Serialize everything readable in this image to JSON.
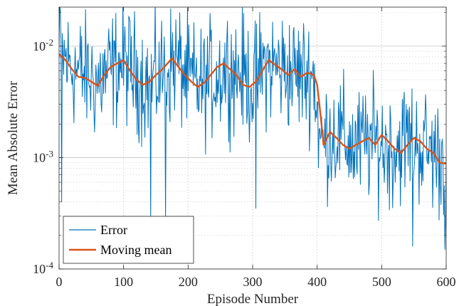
{
  "chart_data": {
    "type": "line",
    "title": "",
    "xlabel": "Episode Number",
    "ylabel": "Mean Absolute Error",
    "xlim": [
      0,
      600
    ],
    "ylim": [
      0.0001,
      0.0224
    ],
    "yscale": "log",
    "grid": true,
    "legend_position": "bottom-left",
    "x_ticks": [
      {
        "value": 0,
        "label": "0"
      },
      {
        "value": 100,
        "label": "100"
      },
      {
        "value": 200,
        "label": "200"
      },
      {
        "value": 300,
        "label": "300"
      },
      {
        "value": 400,
        "label": "400"
      },
      {
        "value": 500,
        "label": "500"
      },
      {
        "value": 600,
        "label": "600"
      }
    ],
    "y_ticks": [
      {
        "value": 0.0001,
        "base": "10",
        "exp": "-4"
      },
      {
        "value": 0.001,
        "base": "10",
        "exp": "-3"
      },
      {
        "value": 0.01,
        "base": "10",
        "exp": "-2"
      }
    ],
    "series": [
      {
        "name": "Error",
        "color": "#0072BD",
        "style": "noisy",
        "x": [
          0,
          20,
          40,
          60,
          80,
          100,
          120,
          140,
          160,
          180,
          200,
          220,
          240,
          260,
          280,
          300,
          320,
          340,
          360,
          380,
          395,
          405,
          420,
          440,
          460,
          480,
          500,
          520,
          540,
          560,
          580,
          600
        ],
        "y": [
          0.0085,
          0.0065,
          0.0055,
          0.0048,
          0.006,
          0.0072,
          0.0055,
          0.0045,
          0.0058,
          0.0075,
          0.005,
          0.0043,
          0.0053,
          0.0065,
          0.0058,
          0.0045,
          0.0068,
          0.0065,
          0.0058,
          0.0055,
          0.0055,
          0.0013,
          0.0017,
          0.0015,
          0.0012,
          0.0014,
          0.0013,
          0.0012,
          0.0015,
          0.0013,
          0.0011,
          0.0009
        ],
        "extremes": [
          {
            "x": 2,
            "y": 0.021
          },
          {
            "x": 4,
            "y": 0.0004
          },
          {
            "x": 142,
            "y": 0.00026
          },
          {
            "x": 165,
            "y": 0.00027
          },
          {
            "x": 305,
            "y": 0.00035
          },
          {
            "x": 548,
            "y": 0.00016
          },
          {
            "x": 598,
            "y": 0.00015
          }
        ]
      },
      {
        "name": "Moving mean",
        "color": "#D95319",
        "style": "smooth",
        "x": [
          0,
          10,
          20,
          30,
          40,
          50,
          60,
          70,
          80,
          90,
          100,
          110,
          120,
          130,
          140,
          150,
          160,
          170,
          175,
          185,
          195,
          205,
          215,
          225,
          235,
          245,
          255,
          265,
          275,
          285,
          295,
          305,
          315,
          325,
          335,
          345,
          355,
          365,
          375,
          385,
          395,
          400,
          405,
          410,
          420,
          430,
          440,
          450,
          460,
          470,
          480,
          490,
          500,
          510,
          520,
          530,
          540,
          550,
          560,
          570,
          580,
          590,
          600
        ],
        "y": [
          0.0085,
          0.0075,
          0.0062,
          0.0053,
          0.0052,
          0.0048,
          0.0044,
          0.0055,
          0.0065,
          0.007,
          0.0075,
          0.006,
          0.005,
          0.0045,
          0.0048,
          0.0055,
          0.0062,
          0.0072,
          0.0078,
          0.0065,
          0.0055,
          0.0048,
          0.0043,
          0.0047,
          0.0055,
          0.0065,
          0.007,
          0.0062,
          0.0055,
          0.0045,
          0.0043,
          0.0048,
          0.006,
          0.0075,
          0.0068,
          0.0062,
          0.0055,
          0.0062,
          0.0053,
          0.0058,
          0.0055,
          0.0045,
          0.0025,
          0.0013,
          0.0017,
          0.0015,
          0.0013,
          0.0012,
          0.0013,
          0.0014,
          0.0015,
          0.0013,
          0.0016,
          0.0014,
          0.0012,
          0.0011,
          0.0013,
          0.0015,
          0.0014,
          0.0012,
          0.0011,
          0.0009,
          0.00088
        ]
      }
    ]
  }
}
